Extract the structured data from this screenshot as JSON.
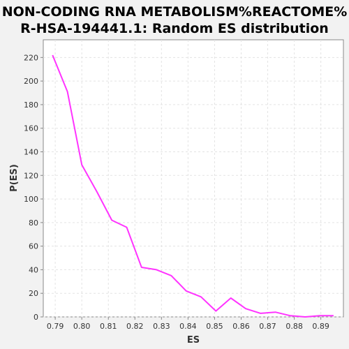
{
  "chart_data": {
    "type": "line",
    "title_lines": [
      "NON-CODING RNA METABOLISM%REACTOME%",
      "R-HSA-194441.1: Random ES distribution"
    ],
    "xlabel": "ES",
    "ylabel": "P(ES)",
    "xlim": [
      0.7855,
      0.8985
    ],
    "ylim": [
      0,
      235
    ],
    "x_ticks": [
      "0.79",
      "0.80",
      "0.81",
      "0.82",
      "0.83",
      "0.84",
      "0.85",
      "0.86",
      "0.87",
      "0.88",
      "0.89"
    ],
    "y_ticks": [
      "0",
      "20",
      "40",
      "60",
      "80",
      "100",
      "120",
      "140",
      "160",
      "180",
      "200",
      "220"
    ],
    "grid": true,
    "series": [
      {
        "color": "#ff33ff",
        "x": [
          0.789,
          0.7946,
          0.8,
          0.8057,
          0.8113,
          0.8169,
          0.8225,
          0.8281,
          0.8337,
          0.8393,
          0.8449,
          0.8505,
          0.8561,
          0.8617,
          0.8673,
          0.8729,
          0.8785,
          0.8841,
          0.8897,
          0.8948
        ],
        "y": [
          222,
          191,
          129,
          106,
          82,
          76,
          42,
          40,
          35,
          22,
          17,
          5,
          16,
          7,
          3,
          4,
          1,
          0,
          1,
          1
        ]
      }
    ]
  }
}
